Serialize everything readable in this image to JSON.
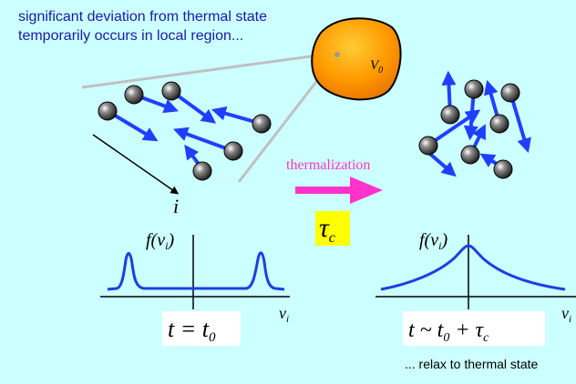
{
  "caption": "significant deviation from thermal state temporarily occurs in local region...",
  "blob_label": "V",
  "blob_label_sub": "0",
  "particle_index_label": "i",
  "process": {
    "label": "thermalization",
    "time_symbol": "τ",
    "time_symbol_sub": "c"
  },
  "left_plot": {
    "ylabel": "f(v",
    "ylabel_sub": "i",
    "ylabel_close": ")",
    "xlabel": "v",
    "xlabel_sub": "i",
    "time_label": "t = t",
    "time_label_sub": "0"
  },
  "right_plot": {
    "ylabel": "f(v",
    "ylabel_sub": "i",
    "ylabel_close": ")",
    "xlabel": "v",
    "xlabel_sub": "i",
    "time_label": "t ~ t",
    "time_label_sub": "0",
    "time_label_tail": " + τ",
    "time_label_tail_sub": "c"
  },
  "footer": "... relax to thermal state",
  "colors": {
    "background": "#ccffff",
    "arrow_blue": "#1f3fff",
    "curve_blue": "#1a3fe6",
    "thermalization_pink": "#ff33cc",
    "tau_box": "#ffff00",
    "blob_orange": "#ff9900",
    "caption_blue": "#1a1aa8"
  }
}
